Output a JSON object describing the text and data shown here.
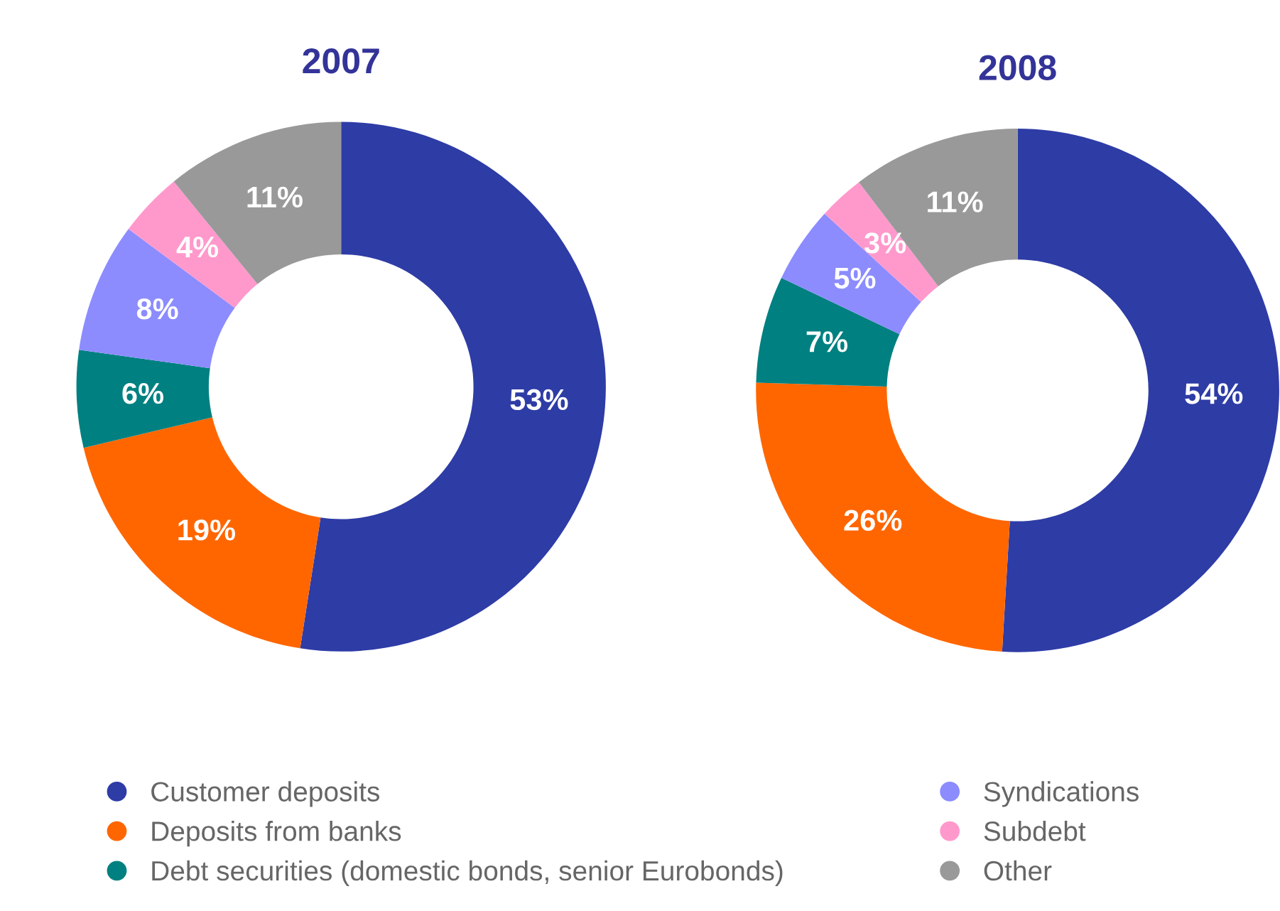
{
  "chart_data": [
    {
      "type": "donut",
      "title": "2007",
      "categories": [
        "Customer deposits",
        "Deposits from banks",
        "Debt securities (domestic bonds, senior Eurobonds)",
        "Syndications",
        "Subdebt",
        "Other"
      ],
      "values": [
        53,
        19,
        6,
        8,
        4,
        11
      ],
      "value_labels": [
        "53%",
        "19%",
        "6%",
        "8%",
        "4%",
        "11%"
      ],
      "colors": [
        "#2e3ca6",
        "#ff6600",
        "#008080",
        "#8c8cff",
        "#ff99cc",
        "#999999"
      ],
      "legend": "bottom"
    },
    {
      "type": "donut",
      "title": "2008",
      "categories": [
        null,
        null,
        null,
        null,
        null,
        null
      ],
      "values": [
        54,
        26,
        7,
        5,
        3,
        11
      ],
      "value_labels": [
        "54%",
        "26%",
        "7%",
        "5%",
        "3%",
        "11%"
      ],
      "colors": [
        "#2e3ca6",
        "#ff6600",
        "#008080",
        "#8c8cff",
        "#ff99cc",
        "#999999"
      ]
    }
  ]
}
